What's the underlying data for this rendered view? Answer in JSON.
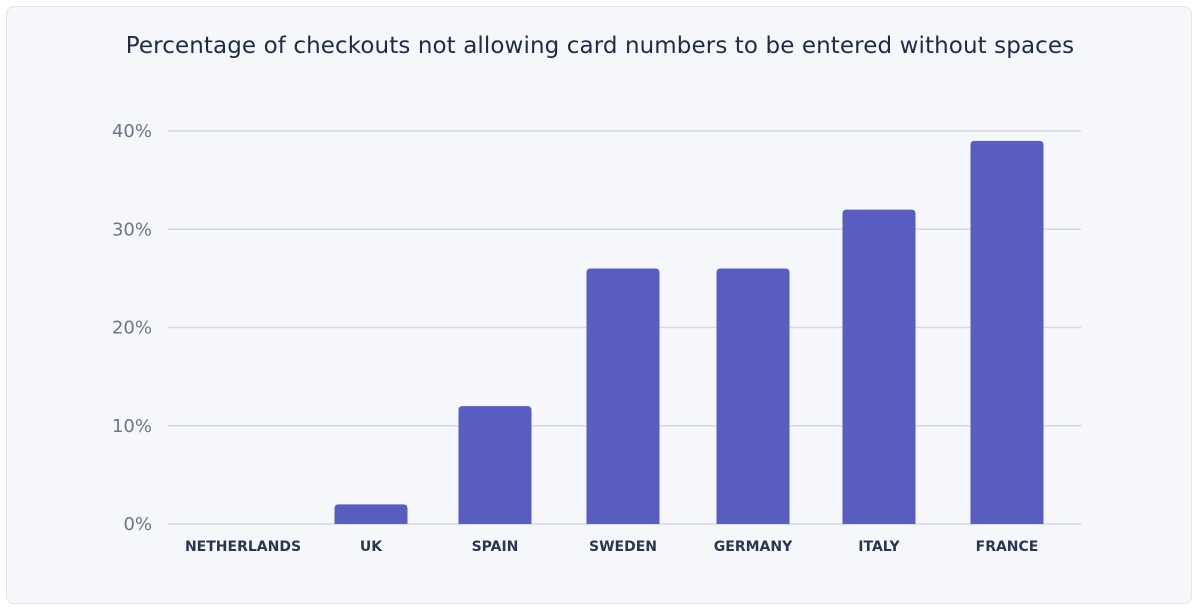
{
  "chart_data": {
    "type": "bar",
    "title": "Percentage of checkouts not allowing card numbers to be entered without spaces",
    "xlabel": "",
    "ylabel": "",
    "categories": [
      "NETHERLANDS",
      "UK",
      "SPAIN",
      "SWEDEN",
      "GERMANY",
      "ITALY",
      "FRANCE"
    ],
    "values": [
      0,
      2,
      12,
      26,
      26,
      32,
      39
    ],
    "ylim": [
      0,
      40
    ],
    "yticks": [
      0,
      10,
      20,
      30,
      40
    ],
    "ytick_labels": [
      "0%",
      "10%",
      "20%",
      "30%",
      "40%"
    ],
    "grid": true,
    "legend": "none",
    "bar_color": "#585dbf",
    "grid_color": "#d3d6e0"
  }
}
